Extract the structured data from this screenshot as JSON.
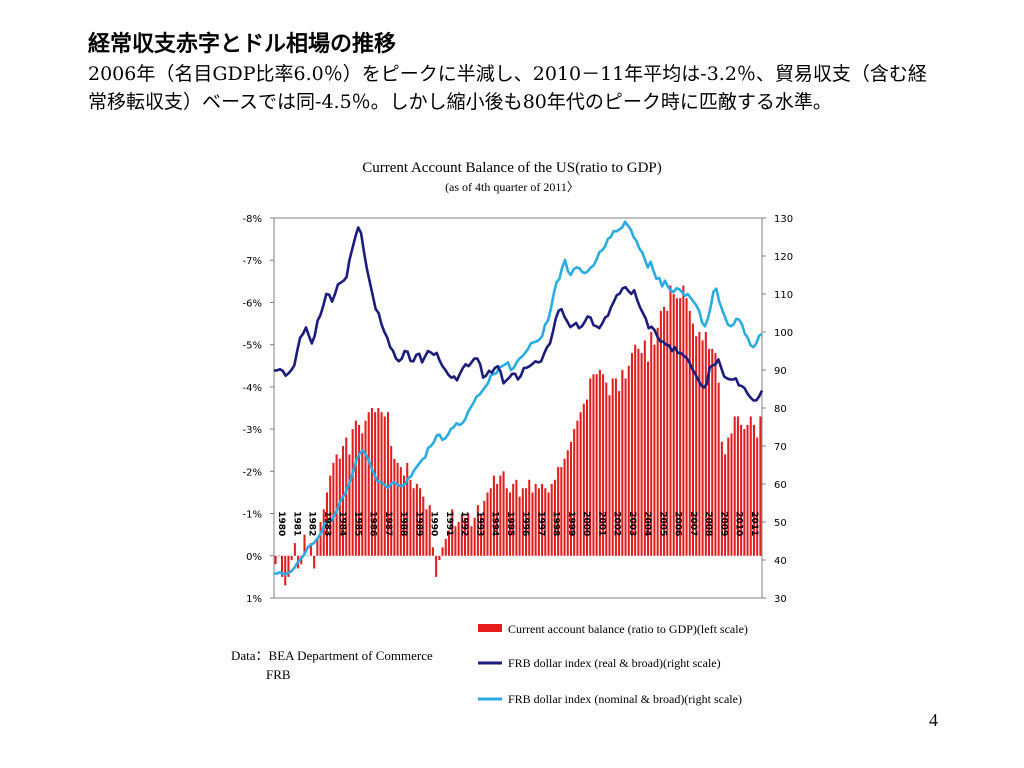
{
  "slide": {
    "title": "経常収支赤字とドル相場の推移",
    "body": "2006年（名目GDP比率6.0％）をピークに半減し、2010－11年平均は-3.2％、貿易収支（含む経常移転収支）ベースでは同-4.5％。しかし縮小後も80年代のピーク時に匹敵する水準。",
    "page_number": "4"
  },
  "source": {
    "line1": "Data：BEA Department of Commerce",
    "line2": "FRB"
  },
  "chart_data": {
    "type": "bar",
    "title": "Current Account Balance of the US(ratio to GDP)",
    "subtitle": "(as of 4th quarter of 2011〉",
    "left_axis": {
      "ticks": [
        "-8%",
        "-7%",
        "-6%",
        "-5%",
        "-4%",
        "-3%",
        "-2%",
        "-1%",
        "0%",
        "1%"
      ],
      "range": [
        -8,
        1
      ]
    },
    "right_axis": {
      "ticks": [
        "130",
        "120",
        "110",
        "100",
        "90",
        "80",
        "70",
        "60",
        "50",
        "40",
        "30"
      ],
      "range": [
        30,
        130
      ]
    },
    "year_labels": [
      "1980",
      "1981",
      "1982",
      "1983",
      "1984",
      "1985",
      "1986",
      "1987",
      "1988",
      "1989",
      "1990",
      "1991",
      "1992",
      "1993",
      "1994",
      "1995",
      "1996",
      "1997",
      "1998",
      "1999",
      "2000",
      "2001",
      "2002",
      "2003",
      "2004",
      "2005",
      "2006",
      "2007",
      "2008",
      "2009",
      "2010",
      "2011"
    ],
    "colors": {
      "bar": "#e31d1d",
      "real_line": "#1c1c7c",
      "nominal_line": "#2aace2"
    },
    "series": [
      {
        "name": "Current account balance (ratio to GDP)(left scale)",
        "kind": "bar",
        "values": [
          0.2,
          0.0,
          0.5,
          0.7,
          0.5,
          0.1,
          -0.3,
          0.3,
          0.2,
          -0.5,
          0.0,
          -0.3,
          0.3,
          -0.4,
          -0.8,
          -1.1,
          -1.5,
          -1.9,
          -2.2,
          -2.4,
          -2.3,
          -2.6,
          -2.8,
          -2.4,
          -3.0,
          -3.2,
          -3.1,
          -2.9,
          -3.2,
          -3.4,
          -3.5,
          -3.4,
          -3.5,
          -3.4,
          -3.3,
          -3.4,
          -2.6,
          -2.3,
          -2.2,
          -2.1,
          -1.9,
          -2.2,
          -1.8,
          -1.6,
          -1.7,
          -1.6,
          -1.4,
          -1.1,
          -1.2,
          -0.2,
          0.5,
          0.1,
          -0.2,
          -0.4,
          -0.6,
          -1.1,
          -0.7,
          -0.8,
          -1.0,
          -0.9,
          -1.0,
          -0.7,
          -0.9,
          -1.2,
          -1.0,
          -1.3,
          -1.5,
          -1.6,
          -1.9,
          -1.7,
          -1.9,
          -2.0,
          -1.6,
          -1.5,
          -1.7,
          -1.8,
          -1.4,
          -1.6,
          -1.6,
          -1.8,
          -1.5,
          -1.7,
          -1.6,
          -1.7,
          -1.6,
          -1.5,
          -1.7,
          -1.8,
          -2.1,
          -2.1,
          -2.3,
          -2.5,
          -2.7,
          -3.0,
          -3.2,
          -3.4,
          -3.6,
          -3.7,
          -4.2,
          -4.3,
          -4.3,
          -4.4,
          -4.3,
          -4.1,
          -3.8,
          -4.2,
          -4.2,
          -3.9,
          -4.4,
          -4.2,
          -4.5,
          -4.8,
          -5.0,
          -4.9,
          -4.8,
          -5.1,
          -4.6,
          -5.3,
          -5.0,
          -5.4,
          -5.8,
          -5.9,
          -5.8,
          -6.4,
          -6.2,
          -6.1,
          -6.1,
          -6.4,
          -6.1,
          -5.8,
          -5.5,
          -5.2,
          -5.3,
          -5.1,
          -5.3,
          -4.9,
          -4.9,
          -4.8,
          -4.1,
          -2.7,
          -2.4,
          -2.8,
          -2.9,
          -3.3,
          -3.3,
          -3.1,
          -3.0,
          -3.1,
          -3.3,
          -3.1,
          -2.8,
          -3.3
        ]
      },
      {
        "name": "FRB dollar index (real & broad)(right scale)",
        "kind": "line",
        "axis": "right",
        "values": [
          89.9,
          89.9,
          90.2,
          89.8,
          88.5,
          89.1,
          90.0,
          91.2,
          95.0,
          98.5,
          99.5,
          101.2,
          99.0,
          97.0,
          99.0,
          103.0,
          104.5,
          107.0,
          110.0,
          109.8,
          108.0,
          110.0,
          112.5,
          113.0,
          113.5,
          114.5,
          119.0,
          122.0,
          125.0,
          127.5,
          126.0,
          121.0,
          116.5,
          113.0,
          109.5,
          106.0,
          105.0,
          102.0,
          100.0,
          98.5,
          96.0,
          95.0,
          93.0,
          92.3,
          93.0,
          95.0,
          94.8,
          92.4,
          92.3,
          94.0,
          94.3,
          92.0,
          93.5,
          95.0,
          94.6,
          94.0,
          94.5,
          92.5,
          91.0,
          90.0,
          88.8,
          88.0,
          88.3,
          87.3,
          89.0,
          90.5,
          91.5,
          91.0,
          92.0,
          93.0,
          93.0,
          91.5,
          88.0,
          88.5,
          89.8,
          89.3,
          90.5,
          91.0,
          89.5,
          86.5,
          87.3,
          88.0,
          89.0,
          89.0,
          87.5,
          88.5,
          90.5,
          90.6,
          91.0,
          91.6,
          92.3,
          92.0,
          92.3,
          94.3,
          96.0,
          97.0,
          100.0,
          103.6,
          105.6,
          106.0,
          104.0,
          102.7,
          101.3,
          101.8,
          102.4,
          101.0,
          101.5,
          102.7,
          104.1,
          103.8,
          101.8,
          101.5,
          101.0,
          102.2,
          103.8,
          104.3,
          106.5,
          108.0,
          109.7,
          110.1,
          111.5,
          111.8,
          110.8,
          110.0,
          111.0,
          108.5,
          106.5,
          105.0,
          103.5,
          101.0,
          101.4,
          100.5,
          98.8,
          97.5,
          97.5,
          96.6,
          96.5,
          95.0,
          96.0,
          94.5,
          94.5,
          93.8,
          93.2,
          92.0,
          90.2,
          89.0,
          87.5,
          86.0,
          85.4,
          86.3,
          90.7,
          91.2,
          91.5,
          92.8,
          90.5,
          88.3,
          87.8,
          87.5,
          87.5,
          87.8,
          86.0,
          85.8,
          85.2,
          83.8,
          82.8,
          82.0,
          82.0,
          83.0,
          84.6
        ]
      },
      {
        "name": "FRB dollar index (nominal & broad)(right scale)",
        "kind": "line",
        "axis": "right",
        "values": [
          36.5,
          36.4,
          36.8,
          36.4,
          36.2,
          36.6,
          37.0,
          37.8,
          39.0,
          40.0,
          40.8,
          42.0,
          43.5,
          44.0,
          44.5,
          45.5,
          46.5,
          48.0,
          50.0,
          50.0,
          50.3,
          51.5,
          53.0,
          55.0,
          56.5,
          57.5,
          59.5,
          61.5,
          64.0,
          66.5,
          68.0,
          68.8,
          68.0,
          66.5,
          64.5,
          62.8,
          61.0,
          60.5,
          60.3,
          59.5,
          59.0,
          60.0,
          60.5,
          60.0,
          59.5,
          59.5,
          60.0,
          61.5,
          62.0,
          63.5,
          64.5,
          65.5,
          66.5,
          67.0,
          69.5,
          70.0,
          71.0,
          72.8,
          73.0,
          71.6,
          72.0,
          73.0,
          74.5,
          75.0,
          76.0,
          75.5,
          76.0,
          77.0,
          79.0,
          80.2,
          81.5,
          83.0,
          83.5,
          84.5,
          85.5,
          86.5,
          88.6,
          88.9,
          89.2,
          90.8,
          91.0,
          91.5,
          92.0,
          90.0,
          90.5,
          92.0,
          93.0,
          93.6,
          94.5,
          95.5,
          97.0,
          97.3,
          97.5,
          98.0,
          99.0,
          102.0,
          103.0,
          106.0,
          110.0,
          113.0,
          114.0,
          117.0,
          119.0,
          116.0,
          115.0,
          116.5,
          117.0,
          116.8,
          115.8,
          115.5,
          116.0,
          117.0,
          117.5,
          119.0,
          121.0,
          121.5,
          122.5,
          124.5,
          125.0,
          126.5,
          126.5,
          127.0,
          127.5,
          129.0,
          128.0,
          127.0,
          125.0,
          124.0,
          122.0,
          121.0,
          119.0,
          117.0,
          118.5,
          116.0,
          114.0,
          114.2,
          112.0,
          113.5,
          112.0,
          111.0,
          110.5,
          111.5,
          111.3,
          110.5,
          109.5,
          110.0,
          109.0,
          108.0,
          107.0,
          105.5,
          102.5,
          101.5,
          103.5,
          106.5,
          110.6,
          111.4,
          108.0,
          106.0,
          104.0,
          102.0,
          101.5,
          102.0,
          103.5,
          103.2,
          102.0,
          99.5,
          98.5,
          96.5,
          96.0,
          97.0,
          99.0,
          99.5
        ]
      }
    ]
  }
}
